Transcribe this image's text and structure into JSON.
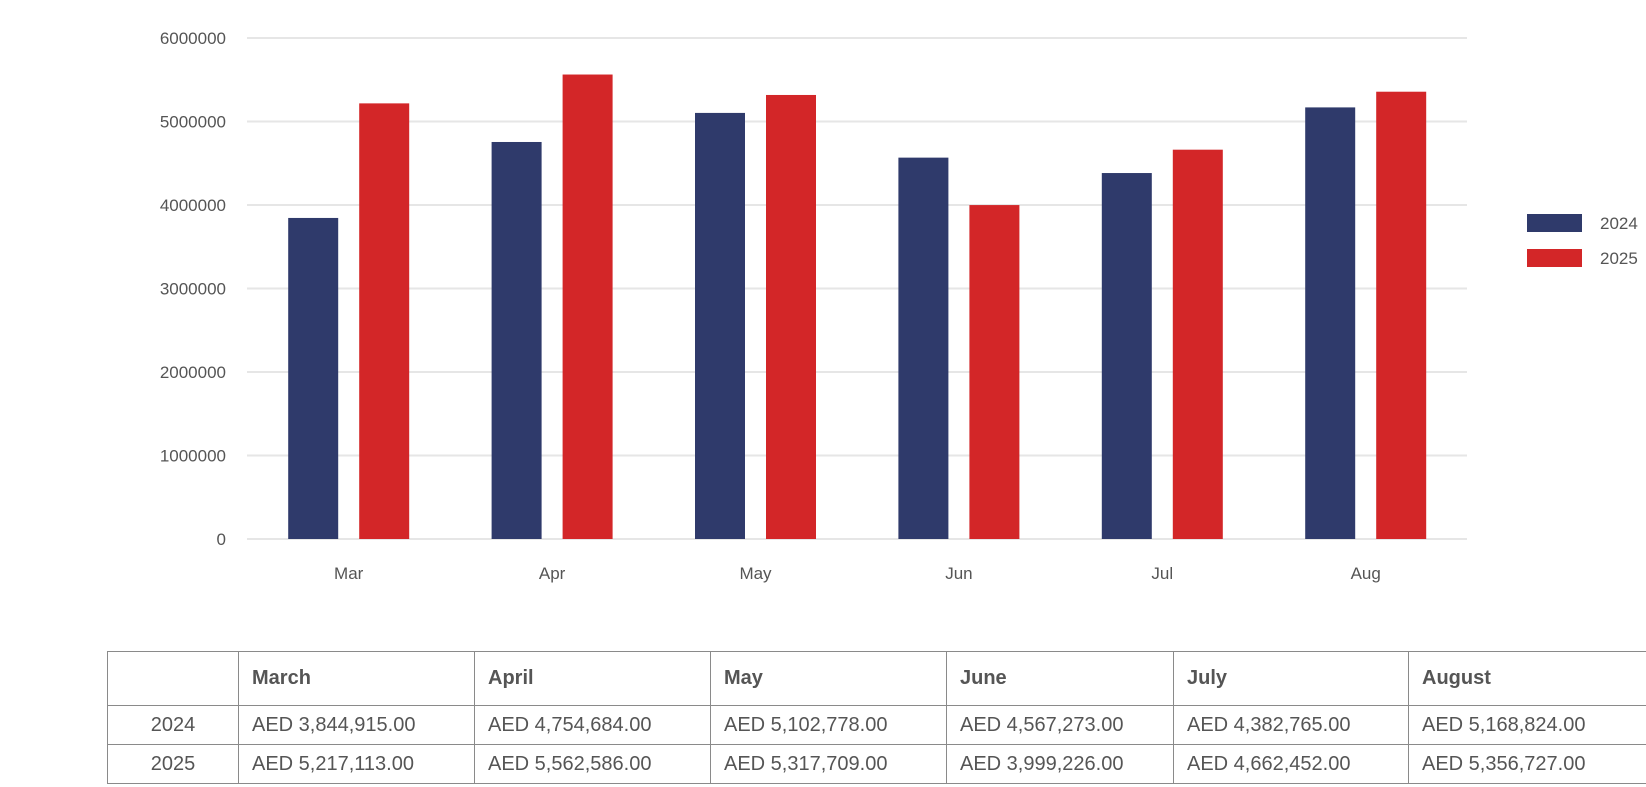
{
  "chart_data": {
    "type": "bar",
    "categories": [
      "Mar",
      "Apr",
      "May",
      "Jun",
      "Jul",
      "Aug"
    ],
    "series": [
      {
        "name": "2024",
        "color": "#2f3a6b",
        "values": [
          3844915,
          4754684,
          5102778,
          4567273,
          4382765,
          5168824
        ]
      },
      {
        "name": "2025",
        "color": "#d32628",
        "values": [
          5217113,
          5562586,
          5317709,
          3999226,
          4662452,
          5356727
        ]
      }
    ],
    "yticks": [
      "0",
      "1000000",
      "2000000",
      "3000000",
      "4000000",
      "5000000",
      "6000000"
    ],
    "ylim": [
      0,
      6000000
    ],
    "grid": true,
    "legend_position": "right"
  },
  "table": {
    "headers": [
      "March",
      "April",
      "May",
      "June",
      "July",
      "August"
    ],
    "rows": [
      {
        "label": "2024",
        "cells": [
          "AED 3,844,915.00",
          "AED 4,754,684.00",
          "AED 5,102,778.00",
          "AED 4,567,273.00",
          "AED 4,382,765.00",
          "AED 5,168,824.00"
        ]
      },
      {
        "label": "2025",
        "cells": [
          "AED 5,217,113.00",
          "AED 5,562,586.00",
          "AED 5,317,709.00",
          "AED 3,999,226.00",
          "AED 4,662,452.00",
          "AED 5,356,727.00"
        ]
      }
    ]
  }
}
